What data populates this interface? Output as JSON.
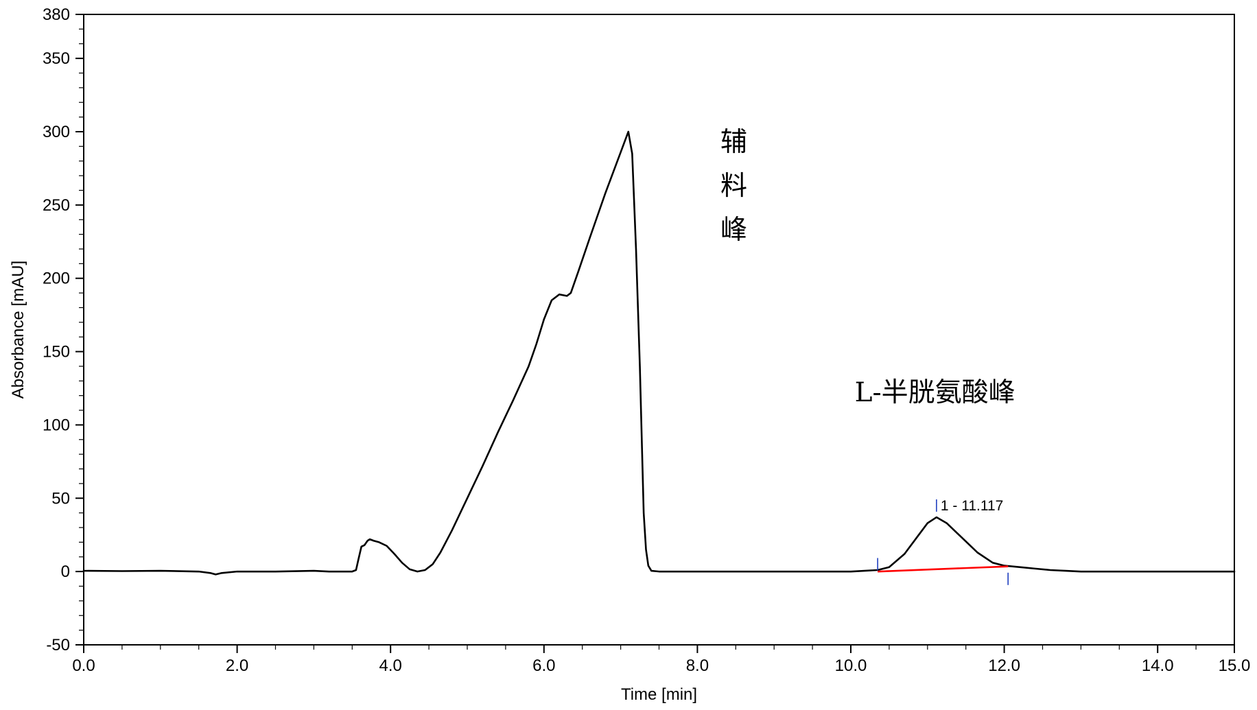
{
  "chart_data": {
    "type": "line",
    "title": "",
    "xlabel": "Time [min]",
    "ylabel": "Absorbance [mAU]",
    "xlim": [
      0.0,
      15.0
    ],
    "ylim": [
      -50,
      380
    ],
    "x_ticks": [
      0.0,
      2.0,
      4.0,
      6.0,
      8.0,
      10.0,
      12.0,
      14.0,
      15.0
    ],
    "x_tick_labels": [
      "0.0",
      "2.0",
      "4.0",
      "6.0",
      "8.0",
      "10.0",
      "12.0",
      "14.0",
      "15.0"
    ],
    "y_ticks": [
      -50,
      0,
      50,
      100,
      150,
      200,
      250,
      300,
      350,
      380
    ],
    "y_tick_labels": [
      "-50",
      "0",
      "50",
      "100",
      "150",
      "200",
      "250",
      "300",
      "350",
      "380"
    ],
    "grid": false,
    "colors": {
      "trace": "#000000",
      "baseline": "#ff0000",
      "marker": "#1f3fbf"
    },
    "series": [
      {
        "x": [
          0.0,
          0.5,
          1.0,
          1.5,
          1.65,
          1.72,
          1.8,
          2.0,
          2.5,
          3.0,
          3.2,
          3.5,
          3.55,
          3.58,
          3.62,
          3.66,
          3.7,
          3.73,
          3.78,
          3.85,
          3.95,
          4.05,
          4.15,
          4.25,
          4.35,
          4.45,
          4.55,
          4.65,
          4.8,
          5.0,
          5.2,
          5.4,
          5.6,
          5.8,
          5.9,
          6.0,
          6.1,
          6.2,
          6.3,
          6.35,
          6.45,
          6.6,
          6.8,
          7.0,
          7.1,
          7.15,
          7.2,
          7.25,
          7.28,
          7.3,
          7.33,
          7.36,
          7.4,
          7.5,
          8.0,
          9.0,
          10.0,
          10.35,
          10.5,
          10.7,
          10.9,
          11.0,
          11.117,
          11.25,
          11.45,
          11.65,
          11.85,
          12.0,
          12.2,
          12.4,
          12.6,
          12.8,
          13.0,
          14.0,
          15.0
        ],
        "y": [
          0.5,
          0.3,
          0.5,
          0.0,
          -1.0,
          -2.0,
          -1.0,
          0.0,
          0.0,
          0.5,
          0.0,
          0.0,
          1.0,
          8.0,
          17.0,
          18.0,
          21.0,
          22.0,
          21.0,
          20.0,
          17.5,
          12.0,
          6.0,
          1.5,
          0.0,
          1.0,
          5.0,
          13.0,
          28.0,
          50.0,
          72.0,
          95.0,
          117.0,
          140.0,
          155.0,
          172.0,
          185.0,
          189.0,
          188.0,
          190.0,
          205.0,
          228.0,
          258.0,
          286.0,
          300.0,
          285.0,
          220.0,
          140.0,
          80.0,
          40.0,
          15.0,
          4.0,
          0.5,
          0.0,
          0.0,
          0.0,
          0.0,
          1.0,
          3.0,
          12.0,
          26.0,
          33.0,
          37.0,
          33.0,
          23.0,
          13.0,
          6.0,
          4.0,
          3.0,
          2.0,
          1.0,
          0.5,
          0.0,
          0.0,
          0.0
        ]
      }
    ],
    "integration_baseline": {
      "x": [
        10.35,
        12.05
      ],
      "y": [
        0.0,
        3.5
      ]
    },
    "peak_markers": [
      {
        "x": 10.35,
        "y": 5.0
      },
      {
        "x": 11.117,
        "y": 45.0
      },
      {
        "x": 12.05,
        "y": -5.0
      }
    ],
    "peak_label": {
      "text": "1 - 11.117",
      "x": 11.117,
      "y": 45.0
    },
    "annotations": [
      {
        "text": "辅",
        "x": 8.3,
        "y": 287.0
      },
      {
        "text": "料",
        "x": 8.3,
        "y": 257.0
      },
      {
        "text": "峰",
        "x": 8.3,
        "y": 227.0
      },
      {
        "text": "L-半胱氨酸峰",
        "x": 10.05,
        "y": 116.0
      }
    ]
  }
}
